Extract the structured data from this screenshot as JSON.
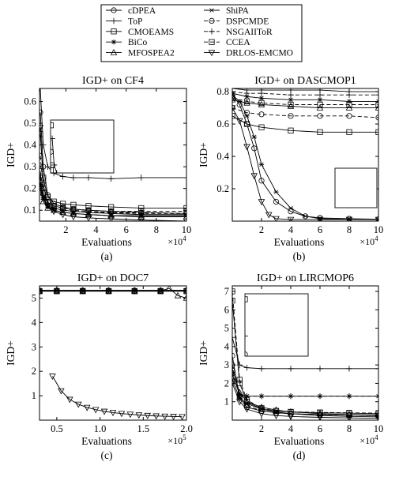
{
  "legend": {
    "entries": [
      {
        "name": "cDPEA",
        "marker": "circle"
      },
      {
        "name": "ShiPA",
        "marker": "asterisk"
      },
      {
        "name": "ToP",
        "marker": "plus"
      },
      {
        "name": "DSPCMDE",
        "marker": "circle-dash"
      },
      {
        "name": "CMOEAMS",
        "marker": "square"
      },
      {
        "name": "NSGAIIToR",
        "marker": "plus-dash"
      },
      {
        "name": "BiCo",
        "marker": "star"
      },
      {
        "name": "CCEA",
        "marker": "square-dash"
      },
      {
        "name": "MFOSPEA2",
        "marker": "triangle"
      },
      {
        "name": "DRLOS-EMCMO",
        "marker": "triangle-down"
      }
    ]
  },
  "chart_data": [
    {
      "type": "line",
      "title": "IGD+ on CF4",
      "xlabel": "Evaluations",
      "ylabel": "IGD+",
      "panel_label": "(a)",
      "x_multiplier": "×10",
      "x_exponent": "4",
      "xlim": [
        0.25,
        10
      ],
      "ylim": [
        0.05,
        0.66
      ],
      "xticks": [
        2,
        4,
        6,
        8,
        10
      ],
      "yticks": [
        0.1,
        0.2,
        0.3,
        0.4,
        0.5,
        0.6
      ],
      "ytick_labels": [
        "0.1",
        "0.2",
        "0.3",
        "0.4",
        "0.5",
        "0.6"
      ],
      "has_inset": true,
      "series": [
        {
          "marker": "circle",
          "x": [
            0.3,
            0.5,
            0.8,
            1.2,
            1.8,
            2.5,
            3.5,
            5,
            7,
            10
          ],
          "y": [
            0.55,
            0.3,
            0.17,
            0.13,
            0.115,
            0.105,
            0.1,
            0.095,
            0.09,
            0.085
          ]
        },
        {
          "marker": "plus",
          "x": [
            0.3,
            0.5,
            0.8,
            1.2,
            1.8,
            2.5,
            3.5,
            5,
            7,
            10
          ],
          "y": [
            0.66,
            0.4,
            0.3,
            0.27,
            0.255,
            0.25,
            0.25,
            0.245,
            0.25,
            0.25
          ]
        },
        {
          "marker": "square",
          "x": [
            0.3,
            0.5,
            0.8,
            1.2,
            1.8,
            2.5,
            3.5,
            5,
            7,
            10
          ],
          "y": [
            0.45,
            0.25,
            0.16,
            0.14,
            0.13,
            0.125,
            0.12,
            0.115,
            0.11,
            0.11
          ]
        },
        {
          "marker": "star",
          "x": [
            0.3,
            0.5,
            0.8,
            1.2,
            1.8,
            2.5,
            3.5,
            5,
            7,
            10
          ],
          "y": [
            0.22,
            0.16,
            0.12,
            0.11,
            0.1,
            0.095,
            0.09,
            0.085,
            0.08,
            0.08
          ]
        },
        {
          "marker": "triangle",
          "x": [
            0.3,
            0.5,
            0.8,
            1.2,
            1.8,
            2.5,
            3.5,
            5,
            7,
            10
          ],
          "y": [
            0.2,
            0.14,
            0.11,
            0.1,
            0.09,
            0.085,
            0.08,
            0.075,
            0.07,
            0.07
          ]
        },
        {
          "marker": "asterisk",
          "x": [
            0.3,
            0.5,
            0.8,
            1.2,
            1.8,
            2.5,
            3.5,
            5,
            7,
            10
          ],
          "y": [
            0.21,
            0.15,
            0.115,
            0.1,
            0.09,
            0.085,
            0.08,
            0.075,
            0.075,
            0.075
          ]
        },
        {
          "marker": "circle-dash",
          "x": [
            0.3,
            0.5,
            0.8,
            1.2,
            1.8,
            2.5,
            3.5,
            5,
            7,
            10
          ],
          "y": [
            0.35,
            0.2,
            0.14,
            0.12,
            0.11,
            0.1,
            0.095,
            0.09,
            0.088,
            0.085
          ]
        },
        {
          "marker": "plus-dash",
          "x": [
            0.3,
            0.5,
            0.8,
            1.2,
            1.8,
            2.5,
            3.5,
            5,
            7,
            10
          ],
          "y": [
            0.25,
            0.17,
            0.13,
            0.11,
            0.1,
            0.095,
            0.09,
            0.088,
            0.085,
            0.085
          ]
        },
        {
          "marker": "square-dash",
          "x": [
            0.3,
            0.5,
            0.8,
            1.2,
            1.8,
            2.5,
            3.5,
            5,
            7,
            10
          ],
          "y": [
            0.28,
            0.18,
            0.135,
            0.12,
            0.11,
            0.105,
            0.1,
            0.095,
            0.095,
            0.095
          ]
        },
        {
          "marker": "triangle-down",
          "x": [
            0.3,
            0.5,
            0.8,
            1.2,
            1.8,
            2.5,
            3.5,
            5,
            7,
            10
          ],
          "y": [
            0.48,
            0.22,
            0.12,
            0.095,
            0.08,
            0.07,
            0.065,
            0.06,
            0.055,
            0.05
          ]
        }
      ]
    },
    {
      "type": "line",
      "title": "IGD+ on DASCMOP1",
      "xlabel": "Evaluations",
      "ylabel": "IGD+",
      "panel_label": "(b)",
      "x_multiplier": "×10",
      "x_exponent": "4",
      "xlim": [
        0,
        10
      ],
      "ylim": [
        0,
        0.82
      ],
      "xticks": [
        2,
        4,
        6,
        8,
        10
      ],
      "yticks": [
        0.2,
        0.4,
        0.6,
        0.8
      ],
      "ytick_labels": [
        "0.2",
        "0.4",
        "0.6",
        "0.8"
      ],
      "has_inset": true,
      "series": [
        {
          "marker": "circle",
          "x": [
            0,
            0.5,
            1,
            1.5,
            2,
            3,
            4,
            5,
            6,
            8,
            10
          ],
          "y": [
            0.78,
            0.72,
            0.6,
            0.45,
            0.25,
            0.12,
            0.06,
            0.03,
            0.02,
            0.015,
            0.012
          ]
        },
        {
          "marker": "plus",
          "x": [
            0,
            1,
            2,
            4,
            6,
            8,
            10
          ],
          "y": [
            0.82,
            0.81,
            0.81,
            0.81,
            0.81,
            0.8,
            0.8
          ]
        },
        {
          "marker": "square",
          "x": [
            0,
            1,
            2,
            4,
            6,
            8,
            10
          ],
          "y": [
            0.65,
            0.6,
            0.58,
            0.56,
            0.55,
            0.55,
            0.55
          ]
        },
        {
          "marker": "star",
          "x": [
            0,
            1,
            2,
            4,
            6,
            8,
            10
          ],
          "y": [
            0.79,
            0.77,
            0.76,
            0.75,
            0.75,
            0.74,
            0.74
          ]
        },
        {
          "marker": "triangle",
          "x": [
            0,
            1,
            2,
            4,
            6,
            8,
            10
          ],
          "y": [
            0.75,
            0.73,
            0.72,
            0.71,
            0.7,
            0.7,
            0.7
          ]
        },
        {
          "marker": "asterisk",
          "x": [
            0,
            0.5,
            1,
            1.5,
            2,
            3,
            4,
            5,
            6,
            8,
            10
          ],
          "y": [
            0.78,
            0.74,
            0.65,
            0.52,
            0.35,
            0.18,
            0.08,
            0.03,
            0.015,
            0.012,
            0.01
          ]
        },
        {
          "marker": "circle-dash",
          "x": [
            0,
            1,
            2,
            4,
            6,
            8,
            10
          ],
          "y": [
            0.7,
            0.67,
            0.66,
            0.65,
            0.65,
            0.65,
            0.64
          ]
        },
        {
          "marker": "plus-dash",
          "x": [
            0,
            1,
            2,
            4,
            6,
            8,
            10
          ],
          "y": [
            0.8,
            0.79,
            0.79,
            0.78,
            0.78,
            0.78,
            0.78
          ]
        },
        {
          "marker": "square-dash",
          "x": [
            0,
            1,
            2,
            4,
            6,
            8,
            10
          ],
          "y": [
            0.76,
            0.74,
            0.73,
            0.72,
            0.72,
            0.72,
            0.72
          ]
        },
        {
          "marker": "triangle-down",
          "x": [
            0,
            0.5,
            1,
            1.5,
            2,
            2.5,
            3,
            4,
            6,
            8,
            10
          ],
          "y": [
            0.7,
            0.62,
            0.46,
            0.28,
            0.12,
            0.04,
            0.015,
            0.01,
            0.01,
            0.01,
            0.01
          ]
        }
      ]
    },
    {
      "type": "line",
      "title": "IGD+ on DOC7",
      "xlabel": "Evaluations",
      "ylabel": "IGD+",
      "panel_label": "(c)",
      "x_multiplier": "×10",
      "x_exponent": "5",
      "xlim": [
        0.3,
        2.0
      ],
      "ylim": [
        0,
        5.5
      ],
      "xticks": [
        0.5,
        1.0,
        1.5,
        2.0
      ],
      "xtick_labels": [
        "0.5",
        "1.0",
        "1.5",
        "2.0"
      ],
      "yticks": [
        1,
        2,
        3,
        4,
        5
      ],
      "ytick_labels": [
        "1",
        "2",
        "3",
        "4",
        "5"
      ],
      "has_inset": false,
      "series": [
        {
          "marker": "circle",
          "x": [
            0.3,
            0.5,
            0.8,
            1.1,
            1.4,
            1.7,
            2.0
          ],
          "y": [
            5.3,
            5.3,
            5.3,
            5.3,
            5.3,
            5.3,
            5.3
          ]
        },
        {
          "marker": "plus",
          "x": [
            0.3,
            0.5,
            0.8,
            1.1,
            1.4,
            1.7,
            2.0
          ],
          "y": [
            5.32,
            5.32,
            5.32,
            5.32,
            5.32,
            5.32,
            5.32
          ]
        },
        {
          "marker": "square",
          "x": [
            0.3,
            0.5,
            0.8,
            1.1,
            1.4,
            1.7,
            2.0
          ],
          "y": [
            5.28,
            5.28,
            5.28,
            5.28,
            5.28,
            5.28,
            5.28
          ]
        },
        {
          "marker": "star",
          "x": [
            0.3,
            0.5,
            0.8,
            1.1,
            1.4,
            1.7,
            2.0
          ],
          "y": [
            5.3,
            5.3,
            5.3,
            5.3,
            5.3,
            5.3,
            5.3
          ]
        },
        {
          "marker": "triangle",
          "x": [
            0.3,
            0.5,
            0.8,
            1.1,
            1.4,
            1.7,
            1.8,
            1.9,
            2.0
          ],
          "y": [
            5.3,
            5.3,
            5.3,
            5.3,
            5.3,
            5.3,
            5.4,
            5.1,
            5.0
          ]
        },
        {
          "marker": "asterisk",
          "x": [
            0.3,
            0.5,
            0.8,
            1.1,
            1.4,
            1.7,
            2.0
          ],
          "y": [
            5.3,
            5.3,
            5.3,
            5.3,
            5.3,
            5.3,
            5.3
          ]
        },
        {
          "marker": "circle-dash",
          "x": [
            0.3,
            0.5,
            0.8,
            1.1,
            1.4,
            1.7,
            2.0
          ],
          "y": [
            5.31,
            5.31,
            5.31,
            5.31,
            5.31,
            5.31,
            5.31
          ]
        },
        {
          "marker": "plus-dash",
          "x": [
            0.3,
            0.5,
            0.8,
            1.1,
            1.4,
            1.7,
            2.0
          ],
          "y": [
            5.3,
            5.3,
            5.3,
            5.3,
            5.3,
            5.3,
            5.3
          ]
        },
        {
          "marker": "square-dash",
          "x": [
            0.3,
            0.5,
            0.8,
            1.1,
            1.4,
            1.7,
            2.0
          ],
          "y": [
            5.29,
            5.29,
            5.29,
            5.29,
            5.29,
            5.29,
            5.29
          ]
        },
        {
          "marker": "triangle-down",
          "x": [
            0.45,
            0.55,
            0.65,
            0.75,
            0.85,
            0.95,
            1.05,
            1.15,
            1.25,
            1.35,
            1.45,
            1.55,
            1.65,
            1.75,
            1.85,
            1.95
          ],
          "y": [
            1.8,
            1.2,
            0.85,
            0.65,
            0.52,
            0.43,
            0.36,
            0.31,
            0.27,
            0.24,
            0.21,
            0.19,
            0.17,
            0.16,
            0.15,
            0.14
          ]
        }
      ]
    },
    {
      "type": "line",
      "title": "IGD+ on LIRCMOP6",
      "xlabel": "Evaluations",
      "ylabel": "IGD+",
      "panel_label": "(d)",
      "x_multiplier": "×10",
      "x_exponent": "4",
      "xlim": [
        0,
        10
      ],
      "ylim": [
        0,
        7.3
      ],
      "xticks": [
        2,
        4,
        6,
        8,
        10
      ],
      "yticks": [
        1,
        2,
        3,
        4,
        5,
        6,
        7
      ],
      "ytick_labels": [
        "1",
        "2",
        "3",
        "4",
        "5",
        "6",
        "7"
      ],
      "has_inset": true,
      "series": [
        {
          "marker": "circle",
          "x": [
            0,
            0.5,
            1,
            2,
            3,
            4,
            6,
            8,
            10
          ],
          "y": [
            3.5,
            1.2,
            0.7,
            0.5,
            0.4,
            0.35,
            0.3,
            0.28,
            0.25
          ]
        },
        {
          "marker": "plus",
          "x": [
            0,
            0.5,
            1,
            2,
            4,
            6,
            8,
            10
          ],
          "y": [
            4.5,
            3.0,
            2.85,
            2.8,
            2.8,
            2.8,
            2.8,
            2.8
          ]
        },
        {
          "marker": "square",
          "x": [
            0,
            0.5,
            1,
            2,
            3,
            4,
            6,
            8,
            10
          ],
          "y": [
            6.5,
            2.0,
            1.0,
            0.6,
            0.5,
            0.45,
            0.4,
            0.38,
            0.35
          ]
        },
        {
          "marker": "star",
          "x": [
            0,
            0.5,
            1,
            2,
            4,
            6,
            8,
            10
          ],
          "y": [
            2.5,
            1.4,
            1.3,
            1.3,
            1.3,
            1.3,
            1.3,
            1.3
          ]
        },
        {
          "marker": "triangle",
          "x": [
            0,
            0.5,
            1,
            2,
            3,
            4,
            6,
            8,
            10
          ],
          "y": [
            2.8,
            1.5,
            1.0,
            0.7,
            0.55,
            0.45,
            0.35,
            0.3,
            0.28
          ]
        },
        {
          "marker": "asterisk",
          "x": [
            0,
            0.5,
            1,
            2,
            3,
            4,
            6,
            8,
            10
          ],
          "y": [
            2.2,
            1.2,
            0.9,
            0.6,
            0.45,
            0.35,
            0.25,
            0.2,
            0.18
          ]
        },
        {
          "marker": "circle-dash",
          "x": [
            0,
            0.5,
            1,
            2,
            3,
            4,
            6,
            8,
            10
          ],
          "y": [
            3.0,
            1.3,
            0.8,
            0.5,
            0.4,
            0.35,
            0.3,
            0.28,
            0.26
          ]
        },
        {
          "marker": "plus-dash",
          "x": [
            0,
            0.5,
            1,
            2,
            4,
            6,
            8,
            10
          ],
          "y": [
            2.6,
            1.35,
            1.3,
            1.3,
            1.3,
            1.3,
            1.3,
            1.3
          ]
        },
        {
          "marker": "square-dash",
          "x": [
            0,
            0.5,
            1,
            2,
            3,
            4,
            6,
            8,
            10
          ],
          "y": [
            7.0,
            2.2,
            1.1,
            0.65,
            0.5,
            0.45,
            0.42,
            0.4,
            0.38
          ]
        },
        {
          "marker": "triangle-down",
          "x": [
            0,
            0.5,
            1,
            2,
            3,
            4,
            6,
            8,
            10
          ],
          "y": [
            2.0,
            1.0,
            0.6,
            0.35,
            0.25,
            0.2,
            0.15,
            0.12,
            0.1
          ]
        }
      ]
    }
  ]
}
